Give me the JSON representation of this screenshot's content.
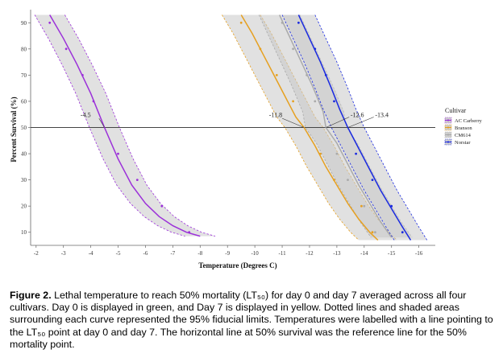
{
  "chart_data": {
    "type": "line",
    "xlabel": "Temperature (Degrees C)",
    "ylabel": "Percent Survival (%)",
    "xlim": [
      -1.8,
      -16.6
    ],
    "ylim": [
      5,
      95
    ],
    "x_ticks": [
      "-2",
      "-3",
      "-4",
      "-5",
      "-6",
      "-7",
      "-8",
      "-9",
      "-10",
      "-11",
      "-12",
      "-13",
      "-14",
      "-15",
      "-16"
    ],
    "y_ticks": [
      "10",
      "20",
      "30",
      "40",
      "50",
      "60",
      "70",
      "80",
      "90"
    ],
    "reference_line": {
      "y": 50
    },
    "legend": {
      "title": "Cultivar",
      "position": "right"
    },
    "series": [
      {
        "name": "AC Carberry",
        "color": "#9b30d9",
        "fit": [
          [
            -2.5,
            93
          ],
          [
            -3.0,
            84
          ],
          [
            -3.5,
            74
          ],
          [
            -4.0,
            63
          ],
          [
            -4.5,
            50
          ],
          [
            -5.0,
            38
          ],
          [
            -5.5,
            28
          ],
          [
            -6.0,
            21
          ],
          [
            -6.5,
            16
          ],
          [
            -7.0,
            12.5
          ],
          [
            -7.5,
            10
          ],
          [
            -8.0,
            8.5
          ]
        ],
        "points": [
          [
            -2.5,
            90
          ],
          [
            -3.1,
            80
          ],
          [
            -3.7,
            70
          ],
          [
            -4.1,
            60
          ],
          [
            -5.0,
            40
          ],
          [
            -5.7,
            30
          ],
          [
            -6.6,
            20
          ],
          [
            -7.6,
            10
          ]
        ],
        "lt50": -4.5
      },
      {
        "name": "Branson",
        "color": "#e6a020",
        "fit": [
          [
            -9.5,
            93
          ],
          [
            -9.9,
            86
          ],
          [
            -10.3,
            78
          ],
          [
            -10.7,
            70
          ],
          [
            -11.1,
            62
          ],
          [
            -11.5,
            54
          ],
          [
            -11.8,
            50
          ],
          [
            -12.2,
            43
          ],
          [
            -12.6,
            35
          ],
          [
            -13.0,
            28
          ],
          [
            -13.4,
            21
          ],
          [
            -13.8,
            15
          ],
          [
            -14.2,
            10
          ],
          [
            -14.5,
            7
          ]
        ],
        "points": [
          [
            -9.5,
            90
          ],
          [
            -10.2,
            80
          ],
          [
            -10.8,
            70
          ],
          [
            -11.4,
            60
          ],
          [
            -12.4,
            40
          ],
          [
            -12.9,
            30
          ],
          [
            -13.9,
            20
          ],
          [
            -14.3,
            10
          ]
        ],
        "lt50": -11.8
      },
      {
        "name": "CM614",
        "color": "#aaaaaa",
        "fit": [
          [
            -10.9,
            93
          ],
          [
            -11.3,
            84
          ],
          [
            -11.7,
            75
          ],
          [
            -12.1,
            66
          ],
          [
            -12.5,
            56
          ],
          [
            -12.6,
            50
          ],
          [
            -13.0,
            44
          ],
          [
            -13.4,
            36
          ],
          [
            -13.8,
            28
          ],
          [
            -14.2,
            21
          ],
          [
            -14.6,
            14
          ],
          [
            -15.0,
            8
          ]
        ],
        "points": [
          [
            -11.0,
            90
          ],
          [
            -11.4,
            80
          ],
          [
            -11.9,
            70
          ],
          [
            -12.2,
            60
          ],
          [
            -13.0,
            40
          ],
          [
            -13.4,
            30
          ],
          [
            -14.0,
            20
          ],
          [
            -14.4,
            10
          ]
        ],
        "lt50": -12.6
      },
      {
        "name": "Norstar",
        "color": "#1a2ae0",
        "fit": [
          [
            -11.6,
            93
          ],
          [
            -12.0,
            84
          ],
          [
            -12.4,
            75
          ],
          [
            -12.8,
            65
          ],
          [
            -13.1,
            57
          ],
          [
            -13.4,
            50
          ],
          [
            -13.8,
            42
          ],
          [
            -14.2,
            34
          ],
          [
            -14.6,
            26
          ],
          [
            -15.0,
            19
          ],
          [
            -15.4,
            12
          ],
          [
            -15.7,
            7
          ]
        ],
        "points": [
          [
            -11.6,
            90
          ],
          [
            -12.2,
            80
          ],
          [
            -12.6,
            70
          ],
          [
            -12.9,
            60
          ],
          [
            -13.7,
            40
          ],
          [
            -14.3,
            30
          ],
          [
            -15.0,
            20
          ],
          [
            -15.4,
            10
          ]
        ],
        "lt50": -13.4
      }
    ],
    "annotations": [
      "-4.5",
      "-11.8",
      "-12.6",
      "-13.4"
    ]
  },
  "caption": {
    "label": "Figure 2.",
    "text": " Lethal temperature to reach 50% mortality (LT₅₀) for day 0 and day 7 averaged across all four cultivars. Day 0 is displayed in green, and Day 7 is displayed in yellow. Dotted lines and shaded areas surrounding each curve represented the 95% fiducial limits. Temperatures were labelled with a line pointing to the LT₅₀ point at day 0 and day 7. The horizontal line at 50% survival was the reference line for the 50% mortality point."
  }
}
